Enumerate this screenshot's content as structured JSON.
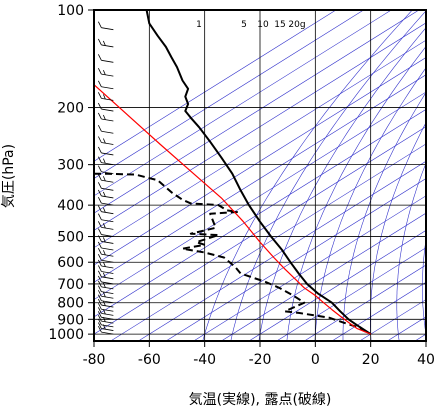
{
  "chart_data": {
    "type": "line",
    "title": "",
    "xlabel": "気温(実線), 露点(破線)",
    "ylabel": "気圧(hPa)",
    "xlim": [
      -80,
      40
    ],
    "ylim": [
      1050,
      100
    ],
    "yscale": "log",
    "grid": true,
    "x_ticks": [
      -80,
      -60,
      -40,
      -20,
      0,
      20,
      40
    ],
    "y_ticks": [
      100,
      200,
      300,
      400,
      500,
      600,
      700,
      800,
      900,
      1000
    ],
    "mixing_ratio_labels": [
      "1",
      "5",
      "10",
      "15",
      "20g"
    ],
    "colors": {
      "temperature": "#000000",
      "dewpoint": "#000000",
      "parcel": "#ff0000",
      "adiabats": "#3333cc",
      "isotherms": "#3333cc",
      "grid": "#000000"
    },
    "series": [
      {
        "role": "temperature",
        "style": "solid",
        "points": [
          [
            -61,
            100
          ],
          [
            -60,
            110
          ],
          [
            -57,
            120
          ],
          [
            -54,
            130
          ],
          [
            -52,
            140
          ],
          [
            -50,
            150
          ],
          [
            -48,
            165
          ],
          [
            -46,
            175
          ],
          [
            -47,
            185
          ],
          [
            -46,
            195
          ],
          [
            -47,
            205
          ],
          [
            -45,
            215
          ],
          [
            -42,
            230
          ],
          [
            -38,
            255
          ],
          [
            -34,
            285
          ],
          [
            -30,
            320
          ],
          [
            -27,
            360
          ],
          [
            -24,
            400
          ],
          [
            -20,
            450
          ],
          [
            -16,
            500
          ],
          [
            -12,
            550
          ],
          [
            -9,
            600
          ],
          [
            -6,
            650
          ],
          [
            -3,
            700
          ],
          [
            1,
            750
          ],
          [
            6,
            800
          ],
          [
            9,
            850
          ],
          [
            12,
            900
          ],
          [
            16,
            950
          ],
          [
            20,
            1000
          ]
        ]
      },
      {
        "role": "dewpoint",
        "style": "dashed",
        "points": [
          [
            -80,
            320
          ],
          [
            -75,
            320
          ],
          [
            -65,
            322
          ],
          [
            -57,
            335
          ],
          [
            -52,
            365
          ],
          [
            -48,
            385
          ],
          [
            -45,
            395
          ],
          [
            -35,
            400
          ],
          [
            -32,
            415
          ],
          [
            -28,
            420
          ],
          [
            -38,
            425
          ],
          [
            -36,
            470
          ],
          [
            -45,
            490
          ],
          [
            -35,
            495
          ],
          [
            -43,
            520
          ],
          [
            -40,
            530
          ],
          [
            -48,
            545
          ],
          [
            -40,
            560
          ],
          [
            -33,
            580
          ],
          [
            -29,
            620
          ],
          [
            -27,
            650
          ],
          [
            -18,
            690
          ],
          [
            -13,
            720
          ],
          [
            -8,
            760
          ],
          [
            -4,
            800
          ],
          [
            -11,
            850
          ],
          [
            -6,
            860
          ],
          [
            5,
            890
          ],
          [
            10,
            920
          ],
          [
            15,
            950
          ],
          [
            18,
            980
          ],
          [
            20,
            1000
          ]
        ]
      },
      {
        "role": "parcel",
        "style": "solid",
        "points": [
          [
            20,
            1000
          ],
          [
            15,
            960
          ],
          [
            12,
            920
          ],
          [
            9,
            880
          ],
          [
            6,
            840
          ],
          [
            3,
            800
          ],
          [
            0,
            760
          ],
          [
            -4,
            720
          ],
          [
            -7,
            680
          ],
          [
            -11,
            630
          ],
          [
            -15,
            580
          ],
          [
            -20,
            520
          ],
          [
            -26,
            450
          ],
          [
            -34,
            380
          ],
          [
            -44,
            320
          ],
          [
            -56,
            260
          ],
          [
            -80,
            170
          ]
        ]
      }
    ],
    "wind_barbs": {
      "x_position": -73,
      "levels": [
        100,
        115,
        130,
        145,
        160,
        175,
        190,
        205,
        220,
        240,
        260,
        280,
        300,
        320,
        340,
        360,
        380,
        400,
        425,
        450,
        475,
        500,
        525,
        550,
        575,
        600,
        625,
        650,
        675,
        700,
        725,
        750,
        775,
        800,
        825,
        850,
        875,
        900,
        925,
        950,
        975,
        1000
      ]
    }
  }
}
